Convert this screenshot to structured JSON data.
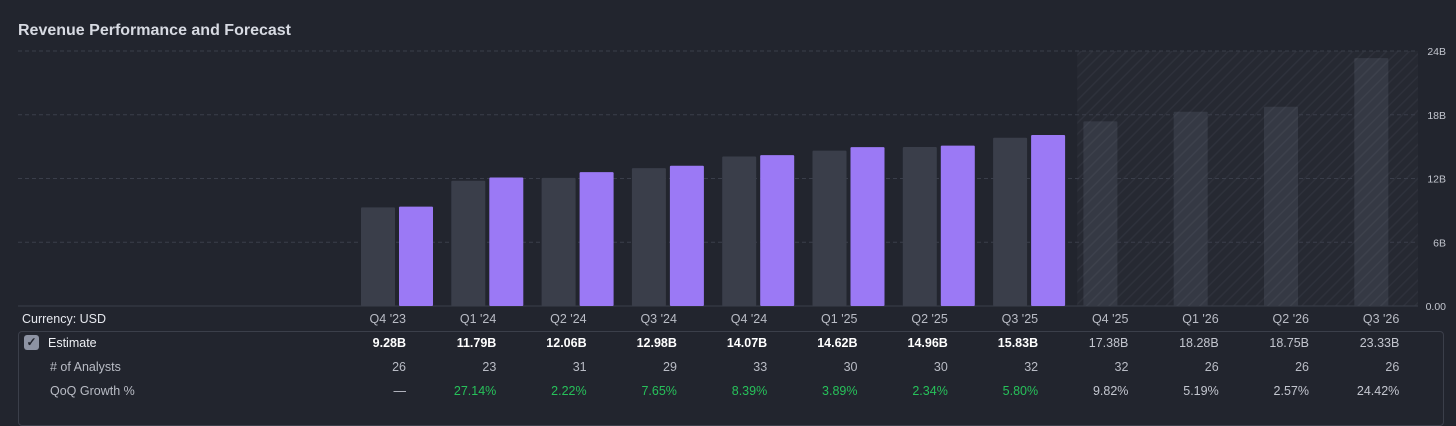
{
  "title": "Revenue Performance and Forecast",
  "colors": {
    "background": "#22252e",
    "estimate_bar": "#3a3e4a",
    "actual_bar": "#9b79f5",
    "forecast_bar": "#353944",
    "grid": "#3a3e4a",
    "positive": "#27c15a"
  },
  "chart_data": {
    "type": "bar",
    "categories": [
      "Q4 '23",
      "Q1 '24",
      "Q2 '24",
      "Q3 '24",
      "Q4 '24",
      "Q1 '25",
      "Q2 '25",
      "Q3 '25",
      "Q4 '25",
      "Q1 '26",
      "Q2 '26",
      "Q3 '26"
    ],
    "series": [
      {
        "values": [
          9.28,
          11.79,
          12.06,
          12.98,
          14.07,
          14.62,
          14.96,
          15.83,
          17.38,
          18.28,
          18.75,
          23.33
        ]
      },
      {
        "values": [
          9.35,
          12.1,
          12.6,
          13.2,
          14.2,
          14.95,
          15.1,
          16.1,
          null,
          null,
          null,
          null
        ]
      }
    ],
    "forecast_start_index": 8,
    "ylim": [
      0,
      24
    ],
    "yticks": [
      0,
      6,
      12,
      18,
      24
    ],
    "ytick_labels": [
      "0.00",
      "6B",
      "12B",
      "18B",
      "24B"
    ],
    "grid": true,
    "y_axis_side": "right"
  },
  "table": {
    "currency_label": "Currency: USD",
    "columns": [
      "Q4 '23",
      "Q1 '24",
      "Q2 '24",
      "Q3 '24",
      "Q4 '24",
      "Q1 '25",
      "Q2 '25",
      "Q3 '25",
      "Q4 '25",
      "Q1 '26",
      "Q2 '26",
      "Q3 '26"
    ],
    "estimate_label": "Estimate",
    "estimate_values": [
      "9.28B",
      "11.79B",
      "12.06B",
      "12.98B",
      "14.07B",
      "14.62B",
      "14.96B",
      "15.83B",
      "17.38B",
      "18.28B",
      "18.75B",
      "23.33B"
    ],
    "analysts_label": "# of Analysts",
    "analysts_values": [
      "26",
      "23",
      "31",
      "29",
      "33",
      "30",
      "30",
      "32",
      "32",
      "26",
      "26",
      "26"
    ],
    "growth_label": "QoQ Growth %",
    "growth_values": [
      "—",
      "27.14%",
      "2.22%",
      "7.65%",
      "8.39%",
      "3.89%",
      "2.34%",
      "5.80%",
      "9.82%",
      "5.19%",
      "2.57%",
      "24.42%"
    ]
  }
}
